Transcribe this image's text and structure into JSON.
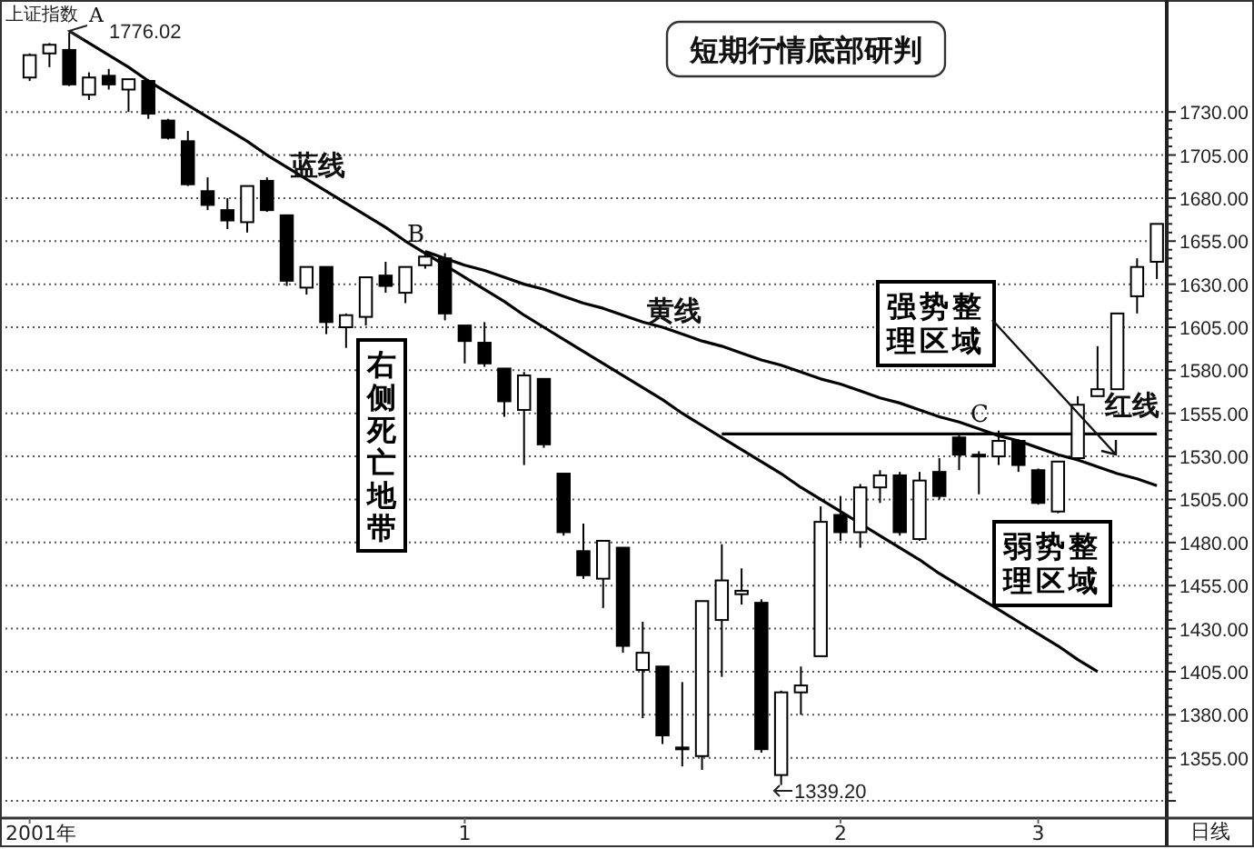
{
  "chart_data": {
    "type": "candlestick",
    "title": "短期行情底部研判",
    "categories": [
      "2001年",
      null,
      null,
      null,
      null,
      null,
      null,
      null,
      null,
      null,
      null,
      null,
      null,
      null,
      null,
      null,
      null,
      null,
      null,
      null,
      null,
      null,
      "1",
      null,
      null,
      null,
      null,
      null,
      null,
      null,
      null,
      null,
      null,
      null,
      null,
      null,
      null,
      null,
      null,
      null,
      null,
      "2",
      null,
      null,
      null,
      null,
      null,
      null,
      null,
      null,
      null,
      "3",
      null,
      null,
      null,
      null,
      null,
      null
    ],
    "ohlc": [
      [
        1750,
        1764,
        1748,
        1763
      ],
      [
        1764,
        1770,
        1756,
        1769
      ],
      [
        1766,
        1776.02,
        1745,
        1746
      ],
      [
        1740,
        1753,
        1737,
        1750
      ],
      [
        1751,
        1755,
        1743,
        1746
      ],
      [
        1743,
        1749,
        1730,
        1749
      ],
      [
        1748,
        1749,
        1726,
        1729
      ],
      [
        1725,
        1726,
        1714,
        1715
      ],
      [
        1713,
        1719,
        1687,
        1688
      ],
      [
        1684,
        1692,
        1673,
        1676
      ],
      [
        1673,
        1680,
        1662,
        1667
      ],
      [
        1666,
        1687,
        1660,
        1687
      ],
      [
        1690,
        1692,
        1672,
        1673
      ],
      [
        1670,
        1670,
        1629,
        1632
      ],
      [
        1628,
        1640,
        1624,
        1640
      ],
      [
        1640,
        1640,
        1601,
        1608
      ],
      [
        1605,
        1613,
        1593,
        1612
      ],
      [
        1611,
        1634,
        1606,
        1634
      ],
      [
        1635,
        1643,
        1625,
        1629
      ],
      [
        1625,
        1640,
        1619,
        1640
      ],
      [
        1641,
        1648,
        1639,
        1646
      ],
      [
        1645,
        1648,
        1609,
        1613
      ],
      [
        1606,
        1606,
        1584,
        1597
      ],
      [
        1596,
        1608,
        1582,
        1584
      ],
      [
        1581,
        1581,
        1553,
        1562
      ],
      [
        1557,
        1579,
        1525,
        1577
      ],
      [
        1575,
        1575,
        1535,
        1537
      ],
      [
        1520,
        1520,
        1484,
        1486
      ],
      [
        1475,
        1491,
        1459,
        1461
      ],
      [
        1459,
        1481,
        1442,
        1481
      ],
      [
        1477,
        1477,
        1416,
        1420
      ],
      [
        1406,
        1434,
        1378,
        1416
      ],
      [
        1408,
        1408,
        1363,
        1368
      ],
      [
        1361,
        1399,
        1350,
        1360
      ],
      [
        1356,
        1446,
        1348,
        1446
      ],
      [
        1435,
        1479,
        1402,
        1458
      ],
      [
        1450,
        1465,
        1444,
        1452
      ],
      [
        1445,
        1447,
        1358,
        1360
      ],
      [
        1345,
        1394,
        1339.2,
        1393
      ],
      [
        1393,
        1408,
        1380,
        1397
      ],
      [
        1414,
        1501,
        1414,
        1492
      ],
      [
        1496,
        1507,
        1481,
        1486
      ],
      [
        1486,
        1514,
        1477,
        1512
      ],
      [
        1512,
        1522,
        1503,
        1519
      ],
      [
        1519,
        1521,
        1484,
        1486
      ],
      [
        1482,
        1521,
        1481,
        1516
      ],
      [
        1521,
        1529,
        1505,
        1507
      ],
      [
        1541,
        1543,
        1522,
        1531
      ],
      [
        1531,
        1533,
        1508,
        1530
      ],
      [
        1530,
        1545,
        1525,
        1539
      ],
      [
        1539,
        1540,
        1521,
        1525
      ],
      [
        1522,
        1523,
        1502,
        1503
      ],
      [
        1498,
        1527,
        1497,
        1527
      ],
      [
        1529,
        1565,
        1528,
        1560
      ],
      [
        1565,
        1594,
        1565,
        1569
      ],
      [
        1569,
        1613,
        1569,
        1613
      ],
      [
        1623,
        1645,
        1613,
        1640
      ],
      [
        1643,
        1665,
        1633,
        1665
      ]
    ],
    "series": [
      {
        "type": "line",
        "name": "蓝线",
        "color": "#000000",
        "values": [
          null,
          null,
          1777,
          1770,
          1763,
          1756,
          1748,
          1741,
          1734,
          1727,
          1720,
          1713,
          1705,
          1698,
          1691,
          1684,
          1677,
          1670,
          1663,
          1655,
          1648,
          1641,
          1634,
          1627,
          1620,
          1612,
          1605,
          1598,
          1591,
          1584,
          1577,
          1570,
          1563,
          1555,
          1548,
          1541,
          1534,
          1527,
          1520,
          1512,
          1505,
          1498,
          1491,
          1484,
          1477,
          1470,
          1462,
          1455,
          1448,
          1441,
          1434,
          1427,
          1420,
          1412,
          1405,
          null,
          null,
          null
        ]
      },
      {
        "type": "line",
        "name": "黄线",
        "color": "#000000",
        "values": [
          null,
          null,
          null,
          null,
          null,
          null,
          null,
          null,
          null,
          null,
          null,
          null,
          null,
          null,
          null,
          null,
          null,
          null,
          null,
          null,
          1649,
          1645,
          1641,
          1638,
          1634,
          1630,
          1627,
          1623,
          1619,
          1616,
          1612,
          1608,
          1605,
          1601,
          1597,
          1594,
          1590,
          1586,
          1583,
          1579,
          1575,
          1572,
          1568,
          1564,
          1561,
          1557,
          1553,
          1550,
          1546,
          1542,
          1539,
          1535,
          1531,
          1528,
          1524,
          1520,
          1517,
          1513
        ]
      },
      {
        "type": "line",
        "name": "红线",
        "color": "#000000",
        "values": [
          null,
          null,
          null,
          null,
          null,
          null,
          null,
          null,
          null,
          null,
          null,
          null,
          null,
          null,
          null,
          null,
          null,
          null,
          null,
          null,
          null,
          null,
          null,
          null,
          null,
          null,
          null,
          null,
          null,
          null,
          null,
          null,
          null,
          null,
          null,
          1543,
          1543,
          1543,
          1543,
          1543,
          1543,
          1543,
          1543,
          1543,
          1543,
          1543,
          1543,
          1543,
          1543,
          1543,
          1543,
          1543,
          1543,
          1543,
          1543,
          1543,
          1543,
          1543
        ]
      }
    ],
    "ylim": [
      1320,
      1795
    ],
    "yticks": [
      {
        "value": 1330,
        "label": null
      },
      {
        "value": 1355,
        "label": "1355.00"
      },
      {
        "value": 1380,
        "label": "1380.00"
      },
      {
        "value": 1405,
        "label": "1405.00"
      },
      {
        "value": 1430,
        "label": "1430.00"
      },
      {
        "value": 1455,
        "label": "1455.00"
      },
      {
        "value": 1480,
        "label": "1480.00"
      },
      {
        "value": 1505,
        "label": "1505.00"
      },
      {
        "value": 1530,
        "label": "1530.00"
      },
      {
        "value": 1555,
        "label": "1555.00"
      },
      {
        "value": 1580,
        "label": "1580.00"
      },
      {
        "value": 1605,
        "label": "1605.00"
      },
      {
        "value": 1630,
        "label": "1630.00"
      },
      {
        "value": 1655,
        "label": "1655.00"
      },
      {
        "value": 1680,
        "label": "1680.00"
      },
      {
        "value": 1705,
        "label": "1705.00"
      },
      {
        "value": 1730,
        "label": "1730.00"
      }
    ],
    "grid": "y",
    "annotations": [
      "上证指数",
      "1776.02",
      "A",
      "B",
      "C",
      "右侧死亡地带",
      "强势整理区域",
      "弱势整理区域",
      "1339.20",
      "日线"
    ]
  }
}
